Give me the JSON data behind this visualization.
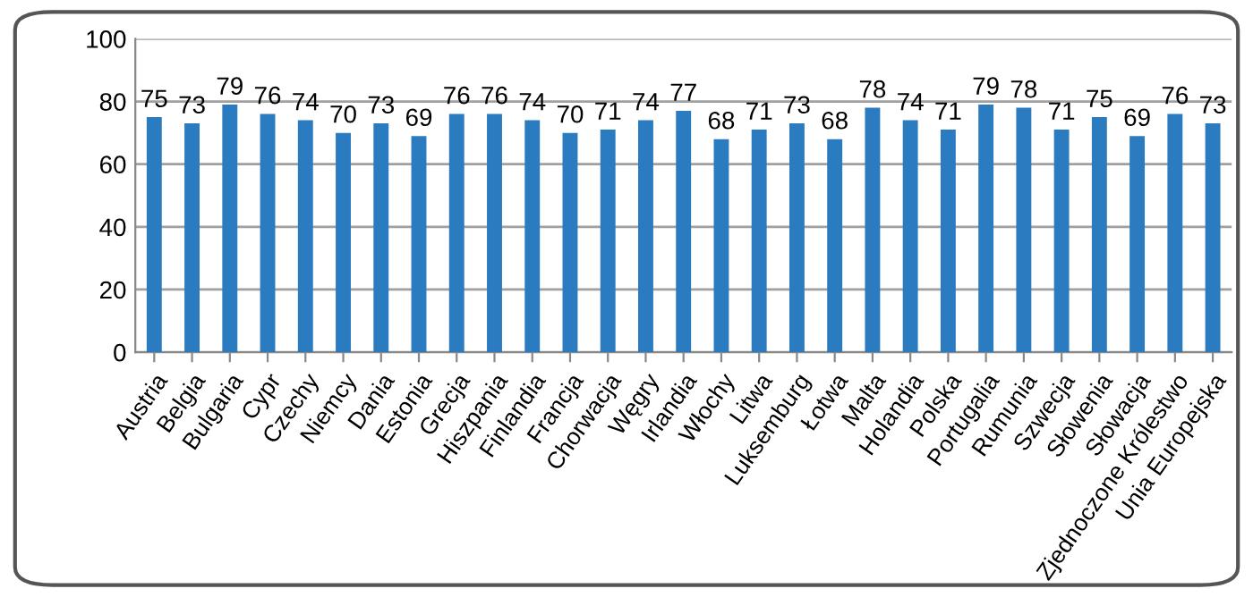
{
  "chart_data": {
    "type": "bar",
    "categories": [
      "Austria",
      "Belgia",
      "Bulgaria",
      "Cypr",
      "Czechy",
      "Niemcy",
      "Dania",
      "Estonia",
      "Grecja",
      "Hiszpania",
      "Finlandia",
      "Francja",
      "Chorwacja",
      "Węgry",
      "Irlandia",
      "Włochy",
      "Litwa",
      "Luksemburg",
      "Łotwa",
      "Malta",
      "Holandia",
      "Polska",
      "Portugalia",
      "Rumunia",
      "Szwecja",
      "Słowenia",
      "Słowacja",
      "Zjednoczone Królestwo",
      "Unia Europejska"
    ],
    "values": [
      75,
      73,
      79,
      76,
      74,
      70,
      73,
      69,
      76,
      76,
      74,
      70,
      71,
      74,
      77,
      68,
      71,
      73,
      68,
      78,
      74,
      71,
      79,
      78,
      71,
      75,
      69,
      76,
      73
    ],
    "color": "#2a7bc0",
    "ylim": [
      0,
      100
    ],
    "yticks": [
      0,
      20,
      40,
      60,
      80,
      100
    ],
    "grid": "y",
    "data_labels": true
  }
}
